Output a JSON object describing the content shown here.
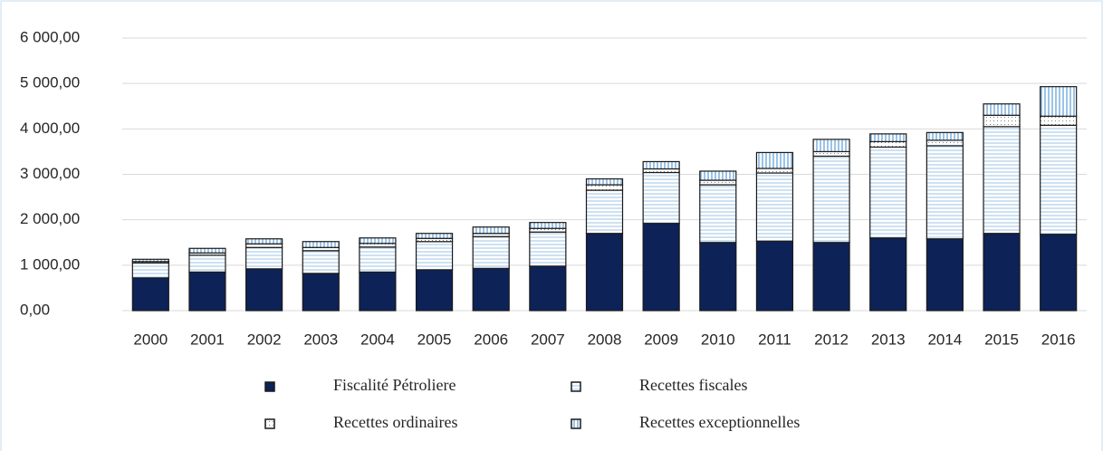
{
  "chart_data": {
    "type": "stacked_bar",
    "categories": [
      "2000",
      "2001",
      "2002",
      "2003",
      "2004",
      "2005",
      "2006",
      "2007",
      "2008",
      "2009",
      "2010",
      "2011",
      "2012",
      "2013",
      "2014",
      "2015",
      "2016"
    ],
    "series": [
      {
        "name": "Fiscalité Pétroliere",
        "color": "#0d2257",
        "pattern": "solid",
        "values": [
          720,
          850,
          920,
          820,
          850,
          900,
          930,
          980,
          1700,
          1920,
          1500,
          1530,
          1500,
          1600,
          1580,
          1700,
          1680
        ]
      },
      {
        "name": "Recettes fiscales",
        "color": "#9dc3e6",
        "pattern": "horizontal",
        "values": [
          330,
          370,
          470,
          500,
          550,
          620,
          700,
          750,
          950,
          1120,
          1270,
          1500,
          1900,
          2000,
          2050,
          2350,
          2400
        ]
      },
      {
        "name": "Recettes ordinaires",
        "color": "#7f7f7f",
        "pattern": "dotted",
        "values": [
          30,
          50,
          80,
          70,
          80,
          70,
          70,
          80,
          120,
          80,
          100,
          100,
          100,
          120,
          120,
          250,
          200
        ]
      },
      {
        "name": "Recettes exceptionnelles",
        "color": "#5b9bd5",
        "pattern": "vertical",
        "values": [
          50,
          100,
          110,
          130,
          120,
          110,
          140,
          130,
          130,
          160,
          200,
          350,
          270,
          170,
          170,
          250,
          650
        ]
      }
    ],
    "ylim": [
      0,
      6000
    ],
    "yticks": [
      {
        "value": 0,
        "label": "0,00"
      },
      {
        "value": 1000,
        "label": "1 000,00"
      },
      {
        "value": 2000,
        "label": "2 000,00"
      },
      {
        "value": 3000,
        "label": "3 000,00"
      },
      {
        "value": 4000,
        "label": "4 000,00"
      },
      {
        "value": 5000,
        "label": "5 000,00"
      },
      {
        "value": 6000,
        "label": "6 000,00"
      }
    ],
    "grid": true,
    "legend": "bottom"
  }
}
